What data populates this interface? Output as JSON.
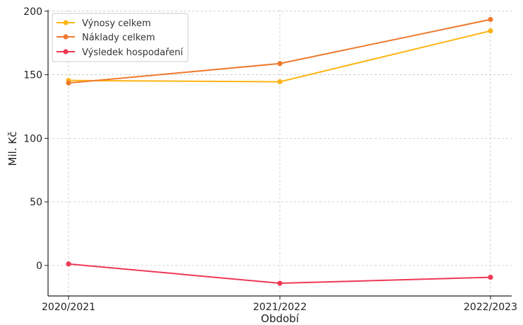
{
  "chart_data": {
    "type": "line",
    "title": "",
    "xlabel": "Období",
    "ylabel": "Mil. Kč",
    "categories": [
      "2020/2021",
      "2021/2022",
      "2022/2023"
    ],
    "ylim": [
      -24,
      201
    ],
    "yticks": [
      0,
      50,
      100,
      150,
      200
    ],
    "grid": true,
    "legend_position": "top-left",
    "series": [
      {
        "name": "Výnosy celkem",
        "color": "#FDB515",
        "values": [
          145.5,
          144.5,
          184.5
        ]
      },
      {
        "name": "Náklady celkem",
        "color": "#EF7A2E",
        "values": [
          143.5,
          158.8,
          193.5
        ]
      },
      {
        "name": "Výsledek hospodaření",
        "color": "#EE3A55",
        "values": [
          1.2,
          -14.0,
          -9.3
        ]
      }
    ]
  }
}
